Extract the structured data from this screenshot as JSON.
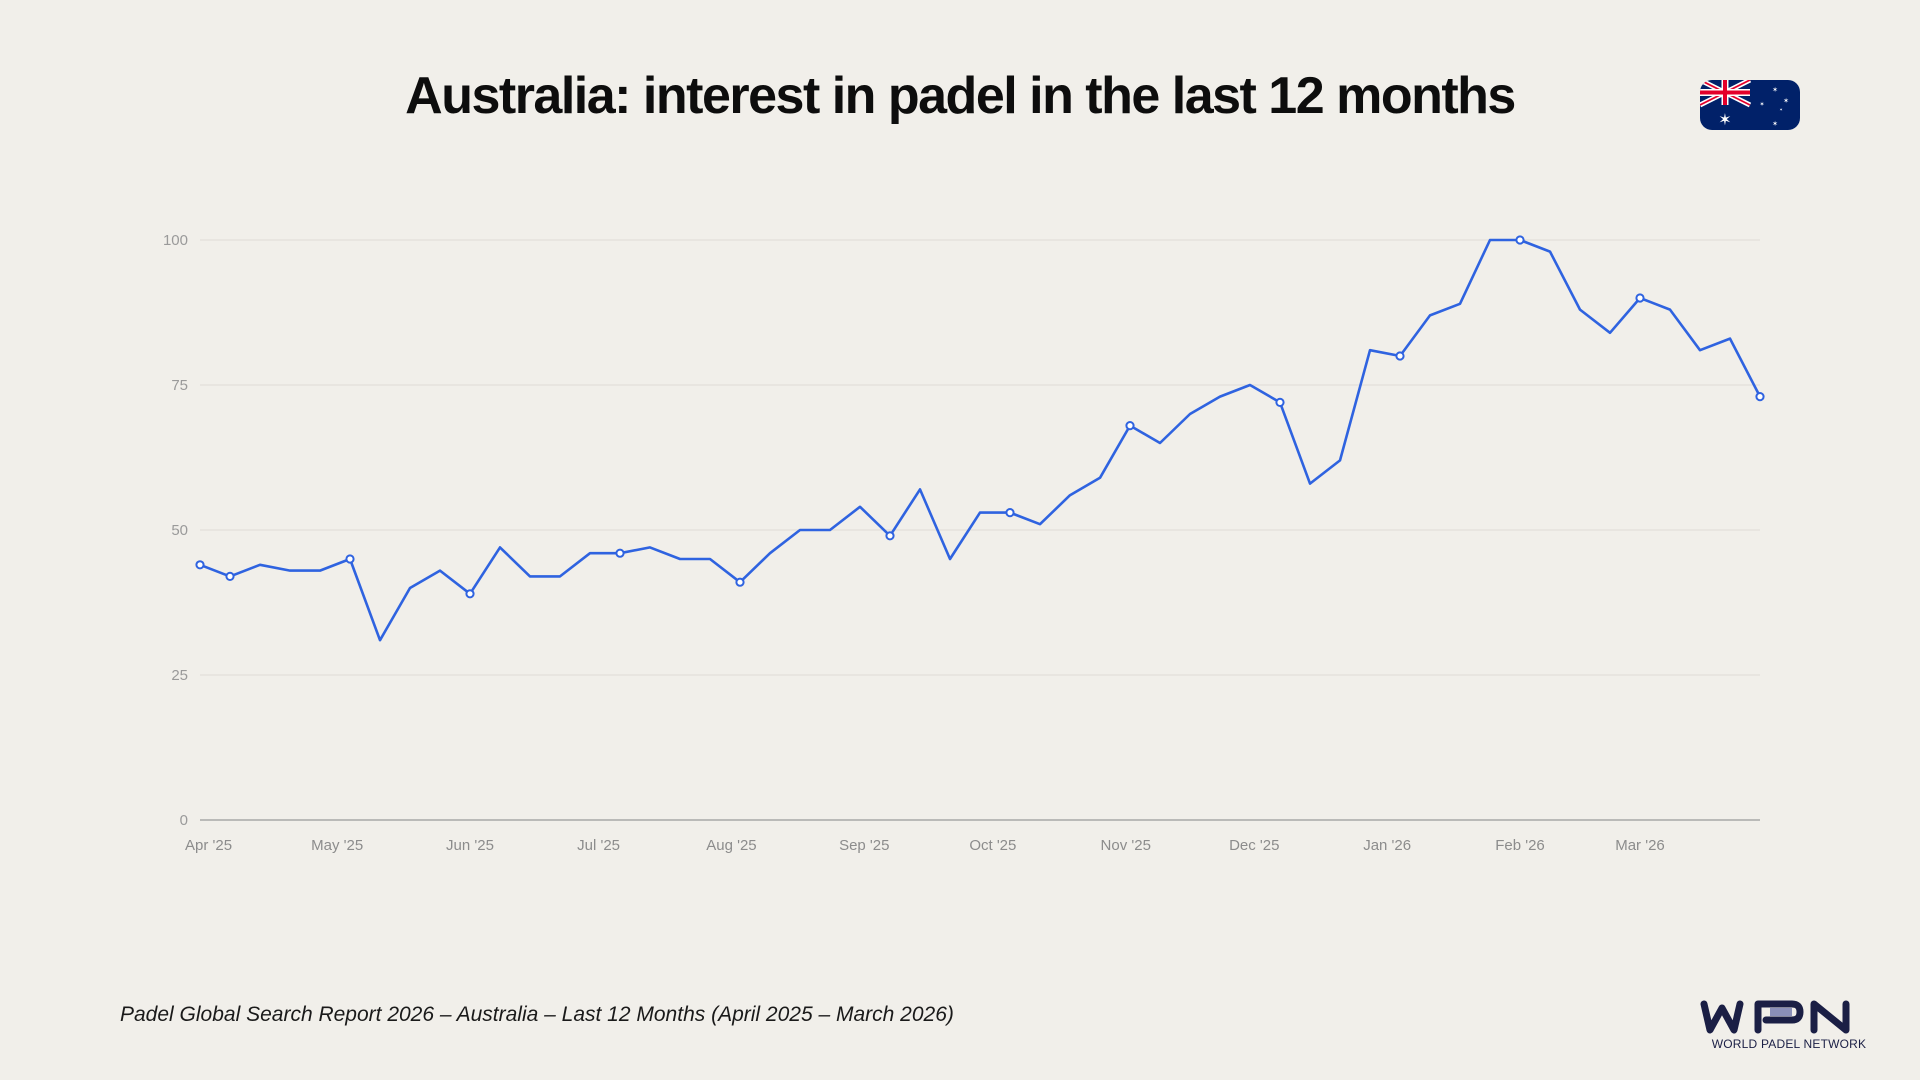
{
  "title": "Australia: interest in padel in the last 12 months",
  "footnote": "Padel Global Search Report 2026 – Australia – Last 12 Months (April 2025 – March 2026)",
  "flag": {
    "icon": "australia-flag-icon",
    "colors": {
      "blue": "#012169",
      "red": "#e4002b",
      "white": "#ffffff"
    }
  },
  "logo": {
    "text": "WPN",
    "subtitle": "WORLD PADEL NETWORK",
    "color": "#1b1f45"
  },
  "chart_data": {
    "type": "line",
    "title": "",
    "xlabel": "",
    "ylabel": "",
    "ylim": [
      0,
      100
    ],
    "yticks": [
      0,
      25,
      50,
      75,
      100
    ],
    "grid": true,
    "line_color": "#2f63e0",
    "xtick_labels": [
      {
        "date": "2025-04-01",
        "label": "Apr '25"
      },
      {
        "date": "2025-05-01",
        "label": "May '25"
      },
      {
        "date": "2025-06-01",
        "label": "Jun '25"
      },
      {
        "date": "2025-07-01",
        "label": "Jul '25"
      },
      {
        "date": "2025-08-01",
        "label": "Aug '25"
      },
      {
        "date": "2025-09-01",
        "label": "Sep '25"
      },
      {
        "date": "2025-10-01",
        "label": "Oct '25"
      },
      {
        "date": "2025-11-01",
        "label": "Nov '25"
      },
      {
        "date": "2025-12-01",
        "label": "Dec '25"
      },
      {
        "date": "2026-01-01",
        "label": "Jan '26"
      },
      {
        "date": "2026-02-01",
        "label": "Feb '26"
      },
      {
        "date": "2026-03-01",
        "label": "Mar '26"
      }
    ],
    "x": [
      "2025-03-30",
      "2025-04-06",
      "2025-04-13",
      "2025-04-20",
      "2025-04-27",
      "2025-05-04",
      "2025-05-11",
      "2025-05-18",
      "2025-05-25",
      "2025-06-01",
      "2025-06-08",
      "2025-06-15",
      "2025-06-22",
      "2025-06-29",
      "2025-07-06",
      "2025-07-13",
      "2025-07-20",
      "2025-07-27",
      "2025-08-03",
      "2025-08-10",
      "2025-08-17",
      "2025-08-24",
      "2025-08-31",
      "2025-09-07",
      "2025-09-14",
      "2025-09-21",
      "2025-09-28",
      "2025-10-05",
      "2025-10-12",
      "2025-10-19",
      "2025-10-26",
      "2025-11-02",
      "2025-11-09",
      "2025-11-16",
      "2025-11-23",
      "2025-11-30",
      "2025-12-07",
      "2025-12-14",
      "2025-12-21",
      "2025-12-28",
      "2026-01-04",
      "2026-01-11",
      "2026-01-18",
      "2026-01-25",
      "2026-02-01",
      "2026-02-08",
      "2026-02-15",
      "2026-02-22",
      "2026-03-01",
      "2026-03-08",
      "2026-03-15",
      "2026-03-22",
      "2026-03-29"
    ],
    "values": [
      44,
      42,
      44,
      43,
      43,
      45,
      31,
      40,
      43,
      39,
      47,
      42,
      42,
      46,
      46,
      47,
      45,
      45,
      41,
      46,
      50,
      50,
      54,
      49,
      57,
      45,
      53,
      53,
      51,
      56,
      59,
      68,
      65,
      70,
      73,
      75,
      72,
      58,
      62,
      81,
      80,
      87,
      89,
      100,
      100,
      98,
      88,
      84,
      90,
      88,
      81,
      83,
      73
    ],
    "markers": [
      "2025-03-30",
      "2025-04-06",
      "2025-05-04",
      "2025-06-01",
      "2025-07-06",
      "2025-08-03",
      "2025-09-07",
      "2025-10-05",
      "2025-11-02",
      "2025-12-07",
      "2026-01-04",
      "2026-02-01",
      "2026-03-01",
      "2026-03-29"
    ]
  }
}
